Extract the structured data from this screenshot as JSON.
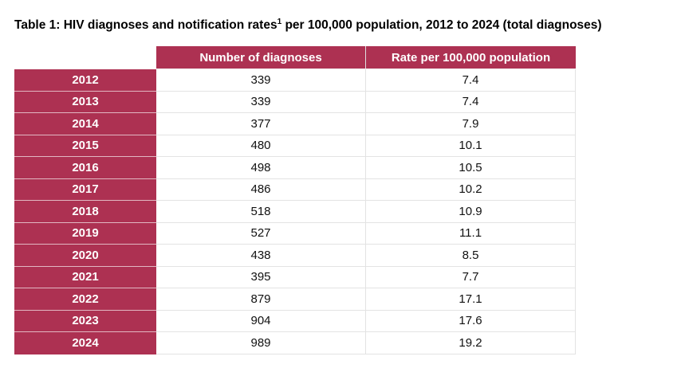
{
  "title": {
    "text_before_sup": "Table 1: HIV diagnoses and notification rates",
    "superscript": "1",
    "text_after_sup": " per 100,000 population, 2012 to 2024 (total diagnoses)"
  },
  "colors": {
    "accent": "#AD3152",
    "header_text": "#FFFFFF",
    "grid_line": "#E3E3E3"
  },
  "chart_data": {
    "type": "table",
    "title": "Table 1: HIV diagnoses and notification rates per 100,000 population, 2012 to 2024 (total diagnoses)",
    "columns": [
      "Number of diagnoses",
      "Rate per 100,000 population"
    ],
    "years": [
      "2012",
      "2013",
      "2014",
      "2015",
      "2016",
      "2017",
      "2018",
      "2019",
      "2020",
      "2021",
      "2022",
      "2023",
      "2024"
    ],
    "series": [
      {
        "name": "Number of diagnoses",
        "values": [
          339,
          339,
          377,
          480,
          498,
          486,
          518,
          527,
          438,
          395,
          879,
          904,
          989
        ]
      },
      {
        "name": "Rate per 100,000 population",
        "values": [
          7.4,
          7.4,
          7.9,
          10.1,
          10.5,
          10.2,
          10.9,
          11.1,
          8.5,
          7.7,
          17.1,
          17.6,
          19.2
        ]
      }
    ]
  }
}
